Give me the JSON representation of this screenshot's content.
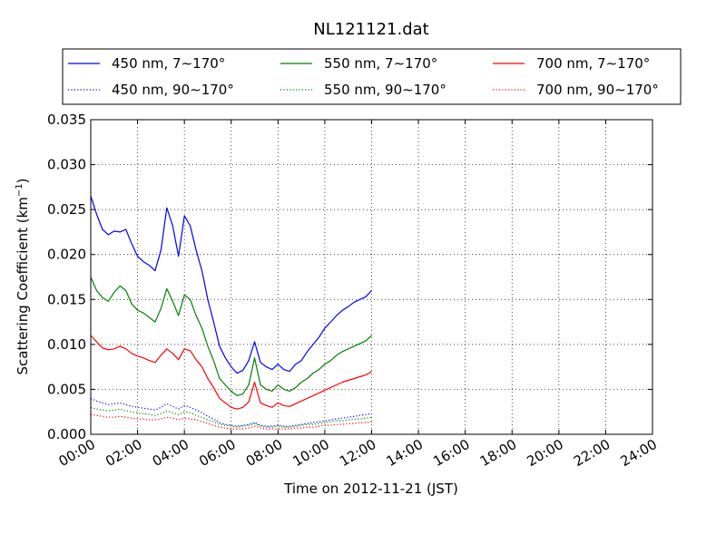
{
  "chart_data": {
    "type": "line",
    "title": "NL121121.dat",
    "xlabel": "Time on 2012-11-21 (JST)",
    "ylabel": "Scattering Coefficient (km",
    "ylabel_sup": "−1",
    "ylabel_end": ")",
    "xlim_hours": [
      0,
      24
    ],
    "ylim": [
      0,
      0.035
    ],
    "grid": true,
    "legend_placement": "top",
    "x_ticks": [
      {
        "hour": 0,
        "label": "00:00"
      },
      {
        "hour": 2,
        "label": "02:00"
      },
      {
        "hour": 4,
        "label": "04:00"
      },
      {
        "hour": 6,
        "label": "06:00"
      },
      {
        "hour": 8,
        "label": "08:00"
      },
      {
        "hour": 10,
        "label": "10:00"
      },
      {
        "hour": 12,
        "label": "12:00"
      },
      {
        "hour": 14,
        "label": "14:00"
      },
      {
        "hour": 16,
        "label": "16:00"
      },
      {
        "hour": 18,
        "label": "18:00"
      },
      {
        "hour": 20,
        "label": "20:00"
      },
      {
        "hour": 22,
        "label": "22:00"
      },
      {
        "hour": 24,
        "label": "24:00"
      }
    ],
    "y_ticks": [
      {
        "value": 0,
        "label": "0.000"
      },
      {
        "value": 0.005,
        "label": "0.005"
      },
      {
        "value": 0.01,
        "label": "0.010"
      },
      {
        "value": 0.015,
        "label": "0.015"
      },
      {
        "value": 0.02,
        "label": "0.020"
      },
      {
        "value": 0.025,
        "label": "0.025"
      },
      {
        "value": 0.03,
        "label": "0.030"
      },
      {
        "value": 0.035,
        "label": "0.035"
      }
    ],
    "hours": [
      0,
      0.25,
      0.5,
      0.75,
      1,
      1.25,
      1.5,
      1.75,
      2,
      2.25,
      2.5,
      2.75,
      3,
      3.25,
      3.5,
      3.75,
      4,
      4.25,
      4.5,
      4.75,
      5,
      5.25,
      5.5,
      5.75,
      6,
      6.25,
      6.5,
      6.75,
      7,
      7.25,
      7.5,
      7.75,
      8,
      8.25,
      8.5,
      8.75,
      9,
      9.25,
      9.5,
      9.75,
      10,
      10.25,
      10.5,
      10.75,
      11,
      11.25,
      11.5,
      11.75,
      12
    ],
    "series": [
      {
        "name": "450 nm, 7∼170°",
        "color": "#0000ff",
        "style": "solid",
        "values": [
          0.0265,
          0.0245,
          0.0228,
          0.0222,
          0.0226,
          0.0225,
          0.0228,
          0.0212,
          0.0198,
          0.0192,
          0.0188,
          0.0182,
          0.0205,
          0.0252,
          0.0232,
          0.0198,
          0.0243,
          0.0232,
          0.0205,
          0.0182,
          0.015,
          0.0125,
          0.0098,
          0.0085,
          0.0075,
          0.0068,
          0.0071,
          0.0082,
          0.0103,
          0.008,
          0.0075,
          0.0072,
          0.0078,
          0.0072,
          0.007,
          0.0078,
          0.0082,
          0.0092,
          0.01,
          0.0108,
          0.0118,
          0.0125,
          0.0132,
          0.0138,
          0.0142,
          0.0147,
          0.015,
          0.0153,
          0.016
        ]
      },
      {
        "name": "550 nm, 7∼170°",
        "color": "#008000",
        "style": "solid",
        "values": [
          0.0175,
          0.016,
          0.0152,
          0.0148,
          0.0158,
          0.0165,
          0.016,
          0.0145,
          0.0138,
          0.0135,
          0.013,
          0.0125,
          0.014,
          0.0162,
          0.0148,
          0.0132,
          0.0155,
          0.015,
          0.0132,
          0.0118,
          0.0098,
          0.0082,
          0.0062,
          0.0055,
          0.0048,
          0.0043,
          0.0045,
          0.0055,
          0.0085,
          0.0055,
          0.005,
          0.0048,
          0.0055,
          0.005,
          0.0048,
          0.0052,
          0.0058,
          0.0062,
          0.0068,
          0.0072,
          0.0078,
          0.0082,
          0.0088,
          0.0092,
          0.0095,
          0.0098,
          0.0101,
          0.0104,
          0.011
        ]
      },
      {
        "name": "700 nm, 7∼170°",
        "color": "#ff0000",
        "style": "solid",
        "values": [
          0.011,
          0.0103,
          0.0096,
          0.0094,
          0.0095,
          0.0098,
          0.0095,
          0.009,
          0.0087,
          0.0085,
          0.0082,
          0.008,
          0.0088,
          0.0095,
          0.009,
          0.0083,
          0.0095,
          0.0093,
          0.0083,
          0.0075,
          0.0062,
          0.0052,
          0.004,
          0.0035,
          0.003,
          0.0028,
          0.003,
          0.0036,
          0.0058,
          0.0035,
          0.0032,
          0.003,
          0.0035,
          0.0032,
          0.0031,
          0.0034,
          0.0037,
          0.004,
          0.0043,
          0.0046,
          0.0049,
          0.0052,
          0.0055,
          0.0058,
          0.006,
          0.0062,
          0.0064,
          0.0066,
          0.007
        ]
      },
      {
        "name": "450 nm, 90∼170°",
        "color": "#0000ff",
        "style": "dotted",
        "values": [
          0.004,
          0.0037,
          0.0035,
          0.0033,
          0.0034,
          0.0035,
          0.0033,
          0.0031,
          0.003,
          0.0029,
          0.0028,
          0.0027,
          0.003,
          0.0034,
          0.0031,
          0.0028,
          0.0032,
          0.003,
          0.0027,
          0.0024,
          0.002,
          0.0017,
          0.0013,
          0.0011,
          0.001,
          0.0009,
          0.001,
          0.0011,
          0.0013,
          0.001,
          0.0009,
          0.0009,
          0.001,
          0.0009,
          0.0009,
          0.001,
          0.0011,
          0.0012,
          0.0013,
          0.0014,
          0.0015,
          0.0016,
          0.0017,
          0.0018,
          0.0019,
          0.002,
          0.0021,
          0.0022,
          0.0023
        ]
      },
      {
        "name": "550 nm, 90∼170°",
        "color": "#008000",
        "style": "dotted",
        "values": [
          0.003,
          0.0028,
          0.0027,
          0.0026,
          0.0027,
          0.0028,
          0.0026,
          0.0025,
          0.0024,
          0.0023,
          0.0022,
          0.0021,
          0.0023,
          0.0026,
          0.0024,
          0.0022,
          0.0025,
          0.0024,
          0.0021,
          0.0019,
          0.0016,
          0.0014,
          0.0011,
          0.001,
          0.0009,
          0.0008,
          0.0009,
          0.001,
          0.0012,
          0.0009,
          0.0008,
          0.0008,
          0.0009,
          0.0008,
          0.0008,
          0.0009,
          0.001,
          0.0011,
          0.0011,
          0.0012,
          0.0013,
          0.0014,
          0.0015,
          0.0015,
          0.0016,
          0.0017,
          0.0017,
          0.0018,
          0.0019
        ]
      },
      {
        "name": "700 nm, 90∼170°",
        "color": "#ff0000",
        "style": "dotted",
        "values": [
          0.0022,
          0.0021,
          0.002,
          0.0019,
          0.0019,
          0.002,
          0.0019,
          0.0018,
          0.0017,
          0.0017,
          0.0016,
          0.0016,
          0.0017,
          0.0019,
          0.0018,
          0.0016,
          0.0018,
          0.0017,
          0.0016,
          0.0014,
          0.0012,
          0.001,
          0.0008,
          0.0007,
          0.0006,
          0.0006,
          0.0006,
          0.0007,
          0.0009,
          0.0007,
          0.0006,
          0.0006,
          0.0006,
          0.0006,
          0.0006,
          0.0007,
          0.0007,
          0.0008,
          0.0008,
          0.0009,
          0.001,
          0.001,
          0.0011,
          0.0011,
          0.0012,
          0.0012,
          0.0013,
          0.0013,
          0.0014
        ]
      }
    ]
  }
}
